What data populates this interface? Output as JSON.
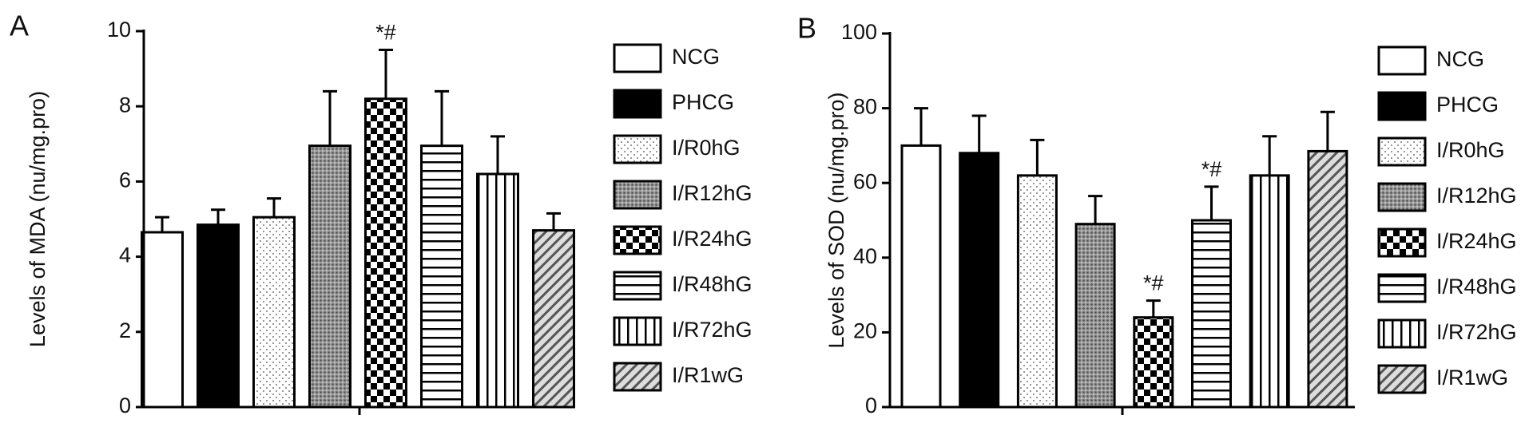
{
  "chart_data": [
    {
      "type": "bar",
      "panel": "A",
      "ylabel": "Levels of MDA (nu/mg.pro)",
      "categories": [
        "NCG",
        "PHCG",
        "I/R0hG",
        "I/R12hG",
        "I/R24hG",
        "I/R48hG",
        "I/R72hG",
        "I/R1wG"
      ],
      "values": [
        4.65,
        4.85,
        5.05,
        6.95,
        8.2,
        6.95,
        6.2,
        4.7
      ],
      "errors": [
        0.4,
        0.4,
        0.5,
        1.45,
        1.3,
        1.45,
        1.0,
        0.45
      ],
      "patterns": [
        "none",
        "solid",
        "dots",
        "crosshatch",
        "checker",
        "horizontal",
        "vertical",
        "diagonal"
      ],
      "annotations": [
        {
          "category": "I/R24hG",
          "text": "*#"
        }
      ],
      "ylim": [
        0,
        10
      ],
      "yticks": [
        0,
        2,
        4,
        6,
        8,
        10
      ],
      "legend": "right"
    },
    {
      "type": "bar",
      "panel": "B",
      "ylabel": "Levels of SOD (nu/mg.pro)",
      "categories": [
        "NCG",
        "PHCG",
        "I/R0hG",
        "I/R12hG",
        "I/R24hG",
        "I/R48hG",
        "I/R72hG",
        "I/R1wG"
      ],
      "values": [
        70,
        68,
        62,
        49,
        24,
        50,
        62,
        68.5
      ],
      "errors": [
        10,
        10,
        9.5,
        7.5,
        4.5,
        9,
        10.5,
        10.5
      ],
      "patterns": [
        "none",
        "solid",
        "dots",
        "crosshatch",
        "checker",
        "horizontal",
        "vertical",
        "diagonal"
      ],
      "annotations": [
        {
          "category": "I/R24hG",
          "text": "*#"
        },
        {
          "category": "I/R48hG",
          "text": "*#"
        }
      ],
      "ylim": [
        0,
        100
      ],
      "yticks": [
        0,
        20,
        40,
        60,
        80,
        100
      ],
      "legend": "right"
    }
  ]
}
